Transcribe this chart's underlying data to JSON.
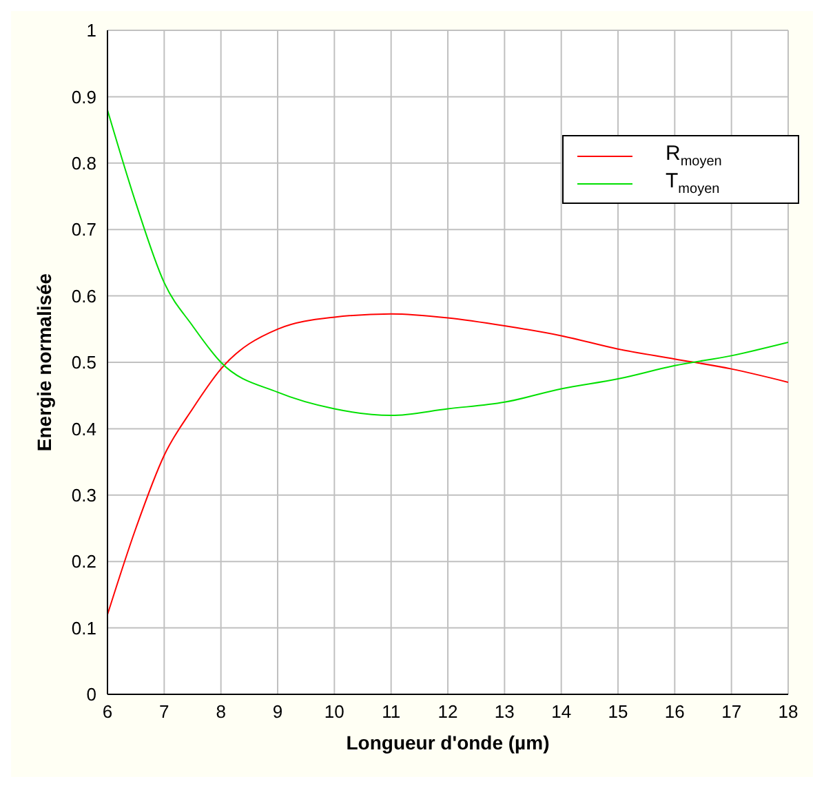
{
  "chart_data": {
    "type": "line",
    "xlabel": "Longueur d'onde (µm)",
    "ylabel": "Energie normalisée",
    "x": [
      6,
      6.5,
      7,
      7.5,
      8,
      9,
      10,
      11,
      12,
      13,
      14,
      15,
      16,
      17,
      18
    ],
    "series": [
      {
        "name": "R$_{moyen}$",
        "color": "#ff0000",
        "values": [
          0.12,
          0.25,
          0.36,
          0.43,
          0.49,
          0.55,
          0.568,
          0.573,
          0.567,
          0.555,
          0.54,
          0.52,
          0.505,
          0.49,
          0.47
        ]
      },
      {
        "name": "T$_{moyen}$",
        "color": "#00e000",
        "values": [
          0.88,
          0.74,
          0.62,
          0.555,
          0.5,
          0.455,
          0.43,
          0.42,
          0.43,
          0.44,
          0.46,
          0.475,
          0.495,
          0.51,
          0.53
        ]
      }
    ],
    "xlim": [
      6,
      18
    ],
    "xticks": [
      6,
      7,
      8,
      9,
      10,
      11,
      12,
      13,
      14,
      15,
      16,
      17,
      18
    ],
    "ylim": [
      0,
      1
    ],
    "yticks": [
      0,
      0.1,
      0.2,
      0.3,
      0.4,
      0.5,
      0.6,
      0.7,
      0.8,
      0.9,
      1
    ],
    "grid": true,
    "legend": "top right",
    "marker": "none",
    "line_style": "solid"
  }
}
